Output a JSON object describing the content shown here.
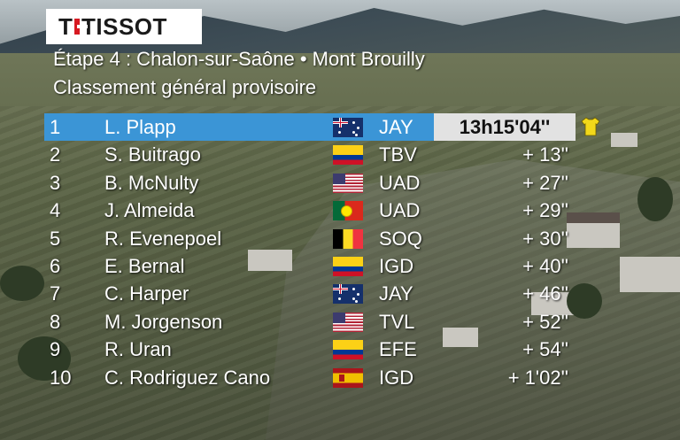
{
  "logo": {
    "text": "TISSOT"
  },
  "header": {
    "stage": "Étape 4 : Chalon-sur-Saône • Mont Brouilly",
    "classification": "Classement général provisoire"
  },
  "leader_jersey": {
    "icon": "yellow-jersey-icon",
    "color": "#f2d81a"
  },
  "colors": {
    "leader_row": "#3b95d6",
    "leader_time_bg": "#e2e2e2",
    "text": "#ffffff"
  },
  "standings": [
    {
      "pos": "1",
      "name": "L. Plapp",
      "flag": "au",
      "team": "JAY",
      "time": "13h15'04''"
    },
    {
      "pos": "2",
      "name": "S. Buitrago",
      "flag": "co",
      "team": "TBV",
      "time": "+ 13''"
    },
    {
      "pos": "3",
      "name": "B. McNulty",
      "flag": "us",
      "team": "UAD",
      "time": "+ 27''"
    },
    {
      "pos": "4",
      "name": "J. Almeida",
      "flag": "pt",
      "team": "UAD",
      "time": "+ 29''"
    },
    {
      "pos": "5",
      "name": "R. Evenepoel",
      "flag": "be",
      "team": "SOQ",
      "time": "+ 30''"
    },
    {
      "pos": "6",
      "name": "E. Bernal",
      "flag": "co",
      "team": "IGD",
      "time": "+ 40''"
    },
    {
      "pos": "7",
      "name": "C. Harper",
      "flag": "au",
      "team": "JAY",
      "time": "+ 46''"
    },
    {
      "pos": "8",
      "name": "M. Jorgenson",
      "flag": "us",
      "team": "TVL",
      "time": "+ 52''"
    },
    {
      "pos": "9",
      "name": "R. Uran",
      "flag": "co",
      "team": "EFE",
      "time": "+ 54''"
    },
    {
      "pos": "10",
      "name": "C. Rodriguez Cano",
      "flag": "es",
      "team": "IGD",
      "time": "+ 1'02''"
    }
  ]
}
